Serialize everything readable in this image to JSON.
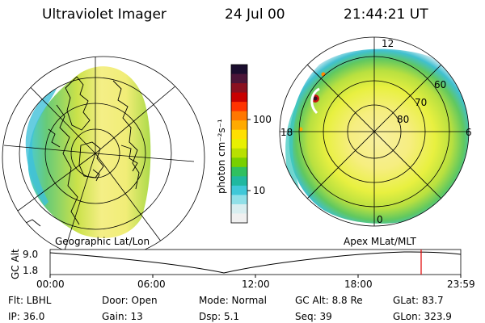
{
  "header": {
    "instrument": "Ultraviolet Imager",
    "date": "24 Jul 00",
    "time": "21:44:21 UT"
  },
  "left_panel": {
    "caption": "Geographic Lat/Lon"
  },
  "right_panel": {
    "caption": "Apex MLat/MLT",
    "mlt_labels": [
      "12",
      "18",
      "6",
      "0"
    ],
    "mlat_labels": [
      "60",
      "70",
      "80"
    ]
  },
  "colorbar": {
    "label": "photon cm⁻²s⁻¹",
    "ticks": [
      "100",
      "10"
    ],
    "colors": [
      "#1a0d2e",
      "#4b1538",
      "#8a1020",
      "#c80000",
      "#ff3300",
      "#ff7700",
      "#ffaa00",
      "#ffe000",
      "#e8f000",
      "#b8e000",
      "#78d000",
      "#30c060",
      "#20b8a0",
      "#40c8d8",
      "#90e0e8",
      "#d8eef0",
      "#f0f0f0"
    ]
  },
  "altitude_track": {
    "ylabel": "GC Alt",
    "y_ticks": [
      "9.0",
      "1.8"
    ],
    "x_ticks": [
      "00:00",
      "06:00",
      "12:00",
      "18:00",
      "23:59"
    ],
    "marker_color": "#e00000"
  },
  "info": {
    "row1": {
      "filter": "Flt: LBHL",
      "door": "Door: Open",
      "mode": "Mode: Normal",
      "gc_alt": "GC Alt: 8.8 Re",
      "glat": "GLat:  83.7"
    },
    "row2": {
      "ip": "IP: 36.0",
      "gain": "Gain: 13",
      "dsp": "Dsp:     5.1",
      "seq": "Seq: 39",
      "glon": "GLon: 323.9"
    }
  }
}
